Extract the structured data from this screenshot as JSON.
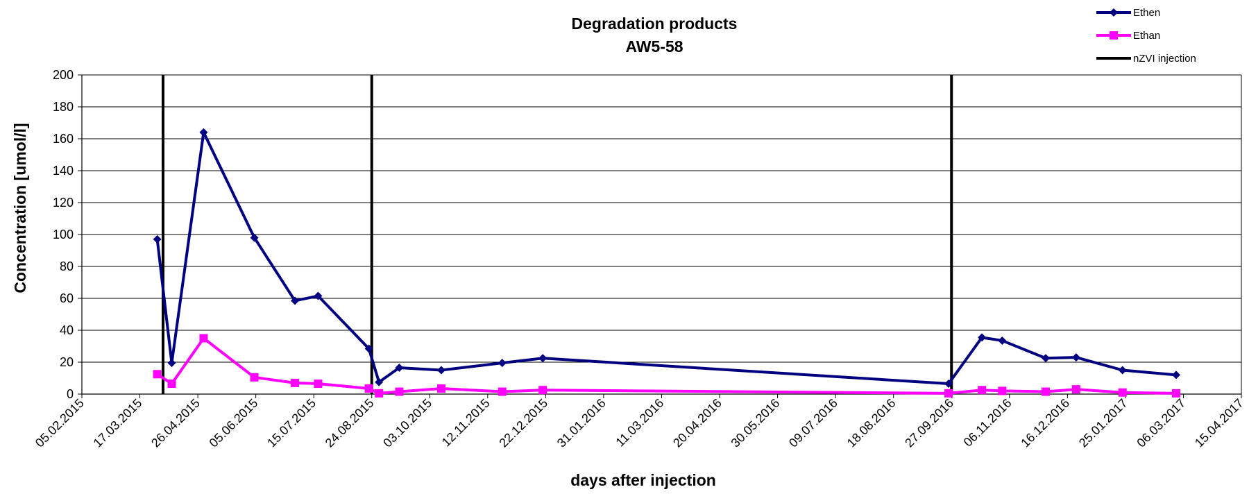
{
  "chart_data": {
    "type": "line",
    "title": "Degradation products",
    "subtitle": "AW5-58",
    "xlabel": "days after injection",
    "ylabel": "Concentration [umol/l]",
    "xlim": [
      "05.02.2015",
      "15.04.2017"
    ],
    "ylim": [
      0,
      200
    ],
    "x_ticks": [
      "05.02.2015",
      "17.03.2015",
      "26.04.2015",
      "05.06.2015",
      "15.07.2015",
      "24.08.2015",
      "03.10.2015",
      "12.11.2015",
      "22.12.2015",
      "31.01.2016",
      "11.03.2016",
      "20.04.2016",
      "30.05.2016",
      "09.07.2016",
      "18.08.2016",
      "27.09.2016",
      "06.11.2016",
      "16.12.2016",
      "25.01.2017",
      "06.03.2017",
      "15.04.2017"
    ],
    "y_ticks": [
      0,
      20,
      40,
      60,
      80,
      100,
      120,
      140,
      160,
      180,
      200
    ],
    "grid": "horizontal",
    "legend_position": "top-right",
    "series": [
      {
        "name": "Ethen",
        "color": "#000080",
        "marker": "diamond",
        "points": [
          [
            "2015-03-29",
            97
          ],
          [
            "2015-04-08",
            19.5
          ],
          [
            "2015-04-30",
            164
          ],
          [
            "2015-06-04",
            98
          ],
          [
            "2015-07-02",
            58.5
          ],
          [
            "2015-07-18",
            61.5
          ],
          [
            "2015-08-22",
            28.5
          ],
          [
            "2015-08-29",
            7.5
          ],
          [
            "2015-09-12",
            16.5
          ],
          [
            "2015-10-11",
            15
          ],
          [
            "2015-11-22",
            19.5
          ],
          [
            "2015-12-20",
            22.5
          ],
          [
            "2016-09-25",
            6.5
          ],
          [
            "2016-10-18",
            35.5
          ],
          [
            "2016-11-01",
            33.5
          ],
          [
            "2016-12-01",
            22.5
          ],
          [
            "2016-12-22",
            23
          ],
          [
            "2017-01-23",
            15
          ],
          [
            "2017-03-01",
            12
          ]
        ]
      },
      {
        "name": "Ethan",
        "color": "#FF00FF",
        "marker": "square",
        "points": [
          [
            "2015-03-29",
            12.5
          ],
          [
            "2015-04-08",
            6.5
          ],
          [
            "2015-04-30",
            35
          ],
          [
            "2015-06-04",
            10.5
          ],
          [
            "2015-07-02",
            7
          ],
          [
            "2015-07-18",
            6.5
          ],
          [
            "2015-08-22",
            3.5
          ],
          [
            "2015-08-29",
            0.5
          ],
          [
            "2015-09-12",
            1.5
          ],
          [
            "2015-10-11",
            3.5
          ],
          [
            "2015-11-22",
            1.5
          ],
          [
            "2015-12-20",
            2.5
          ],
          [
            "2016-09-25",
            0.5
          ],
          [
            "2016-10-18",
            2.5
          ],
          [
            "2016-11-01",
            2
          ],
          [
            "2016-12-01",
            1.5
          ],
          [
            "2016-12-22",
            3
          ],
          [
            "2017-01-23",
            1
          ],
          [
            "2017-03-01",
            0.5
          ]
        ]
      },
      {
        "name": "nZVI injection",
        "color": "#000000",
        "marker": "vertical-line",
        "dates": [
          "2015-04-02",
          "2015-08-24",
          "2016-09-27"
        ]
      }
    ]
  }
}
